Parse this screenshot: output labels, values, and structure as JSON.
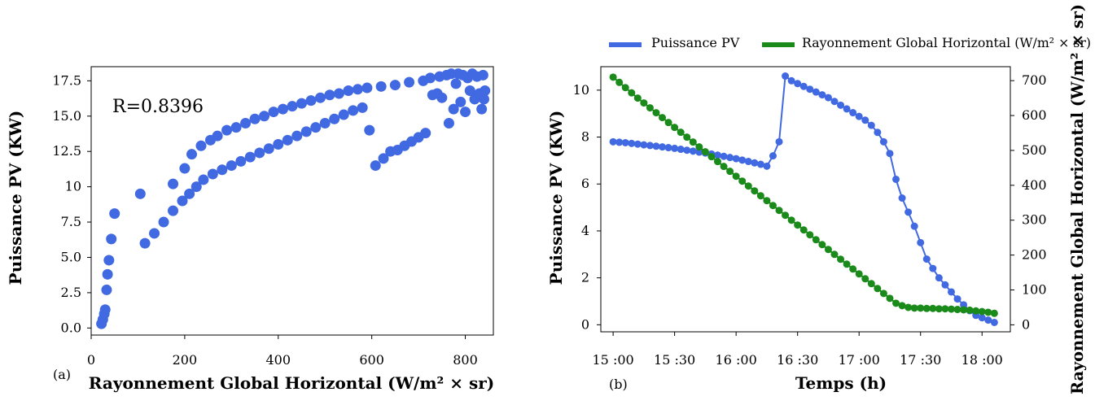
{
  "chart_data": [
    {
      "panel_label": "(a)",
      "type": "scatter",
      "title": "",
      "xlabel": "Rayonnement Global  Horizontal (W/m² × sr)",
      "ylabel": "Puissance  PV  (KW)",
      "xlim": [
        0,
        860
      ],
      "ylim": [
        -0.5,
        18.5
      ],
      "xticks": [
        0,
        200,
        400,
        600,
        800
      ],
      "yticks": [
        0.0,
        2.5,
        5.0,
        7.5,
        10,
        12.5,
        15.0,
        17.5
      ],
      "ytick_labels": [
        "0.0",
        "2.5",
        "5.0",
        "7.5",
        "10",
        "12.5",
        "15.0",
        "17.5"
      ],
      "annotation": "R=0.8396",
      "point_color": "#4169e1",
      "points": [
        [
          22,
          0.3
        ],
        [
          25,
          0.6
        ],
        [
          28,
          1.0
        ],
        [
          30,
          1.3
        ],
        [
          33,
          2.7
        ],
        [
          35,
          3.8
        ],
        [
          38,
          4.8
        ],
        [
          43,
          6.3
        ],
        [
          50,
          8.1
        ],
        [
          105,
          9.5
        ],
        [
          115,
          6.0
        ],
        [
          135,
          6.7
        ],
        [
          155,
          7.5
        ],
        [
          175,
          8.3
        ],
        [
          175,
          10.2
        ],
        [
          195,
          9.0
        ],
        [
          200,
          11.3
        ],
        [
          210,
          9.5
        ],
        [
          215,
          12.3
        ],
        [
          225,
          10.0
        ],
        [
          235,
          12.9
        ],
        [
          240,
          10.5
        ],
        [
          255,
          13.3
        ],
        [
          260,
          10.9
        ],
        [
          270,
          13.6
        ],
        [
          280,
          11.2
        ],
        [
          290,
          14.0
        ],
        [
          300,
          11.5
        ],
        [
          310,
          14.2
        ],
        [
          320,
          11.8
        ],
        [
          330,
          14.5
        ],
        [
          340,
          12.1
        ],
        [
          350,
          14.8
        ],
        [
          360,
          12.4
        ],
        [
          370,
          15.0
        ],
        [
          380,
          12.7
        ],
        [
          390,
          15.3
        ],
        [
          400,
          13.0
        ],
        [
          410,
          15.5
        ],
        [
          420,
          13.3
        ],
        [
          430,
          15.7
        ],
        [
          440,
          13.6
        ],
        [
          450,
          15.9
        ],
        [
          460,
          13.9
        ],
        [
          470,
          16.1
        ],
        [
          480,
          14.2
        ],
        [
          490,
          16.3
        ],
        [
          500,
          14.5
        ],
        [
          510,
          16.5
        ],
        [
          520,
          14.8
        ],
        [
          530,
          16.6
        ],
        [
          540,
          15.1
        ],
        [
          550,
          16.8
        ],
        [
          560,
          15.4
        ],
        [
          570,
          16.9
        ],
        [
          580,
          15.6
        ],
        [
          590,
          17.0
        ],
        [
          595,
          14.0
        ],
        [
          608,
          11.5
        ],
        [
          620,
          17.1
        ],
        [
          625,
          12.0
        ],
        [
          640,
          12.5
        ],
        [
          650,
          17.2
        ],
        [
          655,
          12.6
        ],
        [
          670,
          12.9
        ],
        [
          680,
          17.4
        ],
        [
          685,
          13.2
        ],
        [
          700,
          13.5
        ],
        [
          710,
          17.5
        ],
        [
          715,
          13.8
        ],
        [
          725,
          17.7
        ],
        [
          730,
          16.5
        ],
        [
          740,
          16.6
        ],
        [
          745,
          17.8
        ],
        [
          750,
          16.3
        ],
        [
          760,
          17.9
        ],
        [
          765,
          14.5
        ],
        [
          770,
          18.0
        ],
        [
          775,
          15.5
        ],
        [
          780,
          17.3
        ],
        [
          785,
          18.0
        ],
        [
          790,
          16.0
        ],
        [
          795,
          17.9
        ],
        [
          800,
          15.3
        ],
        [
          805,
          17.7
        ],
        [
          810,
          16.8
        ],
        [
          815,
          18.0
        ],
        [
          820,
          16.2
        ],
        [
          825,
          17.8
        ],
        [
          830,
          16.6
        ],
        [
          835,
          15.5
        ],
        [
          838,
          17.9
        ],
        [
          840,
          16.2
        ],
        [
          842,
          16.8
        ]
      ]
    },
    {
      "panel_label": "(b)",
      "type": "line",
      "title": "",
      "xlabel": "Temps  (h)",
      "ylabel": "Puissance  PV  (KW)",
      "ylabel_right": "Rayonnement Global  Horizontal (W/m² × sr)",
      "xlim": [
        -0.1,
        3.23
      ],
      "xticks": [
        0,
        0.5,
        1,
        1.5,
        2,
        2.5,
        3
      ],
      "xtick_labels": [
        "15 :00",
        "15 :30",
        "16 :00",
        "16 :30",
        "17 :00",
        "17 :30",
        "18 :00"
      ],
      "ylim_left": [
        -0.3,
        11.0
      ],
      "yticks_left": [
        0,
        2,
        4,
        6,
        8,
        10
      ],
      "ylim_right": [
        -20,
        740
      ],
      "yticks_right": [
        0,
        100,
        200,
        300,
        400,
        500,
        600,
        700
      ],
      "legend_position": "top",
      "series": [
        {
          "name": "Puissance PV",
          "axis": "left",
          "color": "#4169e1",
          "x": [
            0,
            0.05,
            0.1,
            0.15,
            0.2,
            0.25,
            0.3,
            0.35,
            0.4,
            0.45,
            0.5,
            0.55,
            0.6,
            0.65,
            0.7,
            0.75,
            0.8,
            0.85,
            0.9,
            0.95,
            1.0,
            1.05,
            1.1,
            1.15,
            1.2,
            1.25,
            1.3,
            1.35,
            1.4,
            1.45,
            1.5,
            1.55,
            1.6,
            1.65,
            1.7,
            1.75,
            1.8,
            1.85,
            1.9,
            1.95,
            2.0,
            2.05,
            2.1,
            2.15,
            2.2,
            2.25,
            2.3,
            2.35,
            2.4,
            2.45,
            2.5,
            2.55,
            2.6,
            2.65,
            2.7,
            2.75,
            2.8,
            2.85,
            2.9,
            2.95,
            3.0,
            3.05,
            3.1
          ],
          "values": [
            7.8,
            7.78,
            7.76,
            7.73,
            7.7,
            7.67,
            7.64,
            7.61,
            7.58,
            7.55,
            7.52,
            7.48,
            7.44,
            7.4,
            7.36,
            7.32,
            7.28,
            7.23,
            7.18,
            7.13,
            7.08,
            7.02,
            6.96,
            6.9,
            6.84,
            6.76,
            7.2,
            7.8,
            10.6,
            10.4,
            10.28,
            10.16,
            10.04,
            9.92,
            9.8,
            9.68,
            9.52,
            9.36,
            9.2,
            9.04,
            8.88,
            8.72,
            8.5,
            8.2,
            7.8,
            7.3,
            6.2,
            5.4,
            4.8,
            4.2,
            3.5,
            2.8,
            2.4,
            2.0,
            1.7,
            1.4,
            1.1,
            0.85,
            0.6,
            0.4,
            0.3,
            0.2,
            0.1
          ]
        },
        {
          "name": "Rayonnement Global Horizontal (W/m² × sr)",
          "axis": "right",
          "color": "#1a8a1a",
          "x": [
            0,
            0.05,
            0.1,
            0.15,
            0.2,
            0.25,
            0.3,
            0.35,
            0.4,
            0.45,
            0.5,
            0.55,
            0.6,
            0.65,
            0.7,
            0.75,
            0.8,
            0.85,
            0.9,
            0.95,
            1.0,
            1.05,
            1.1,
            1.15,
            1.2,
            1.25,
            1.3,
            1.35,
            1.4,
            1.45,
            1.5,
            1.55,
            1.6,
            1.65,
            1.7,
            1.75,
            1.8,
            1.85,
            1.9,
            1.95,
            2.0,
            2.05,
            2.1,
            2.15,
            2.2,
            2.25,
            2.3,
            2.35,
            2.4,
            2.45,
            2.5,
            2.55,
            2.6,
            2.65,
            2.7,
            2.75,
            2.8,
            2.85,
            2.9,
            2.95,
            3.0,
            3.05,
            3.1
          ],
          "values": [
            710,
            695,
            680,
            665,
            650,
            636,
            622,
            608,
            594,
            580,
            566,
            552,
            538,
            524,
            510,
            496,
            482,
            468,
            454,
            440,
            426,
            412,
            398,
            384,
            370,
            356,
            342,
            328,
            314,
            300,
            286,
            272,
            258,
            244,
            230,
            216,
            202,
            188,
            174,
            160,
            146,
            132,
            118,
            104,
            90,
            76,
            62,
            55,
            50,
            48,
            48,
            47,
            47,
            46,
            46,
            45,
            44,
            43,
            42,
            40,
            38,
            36,
            33
          ]
        }
      ]
    }
  ]
}
